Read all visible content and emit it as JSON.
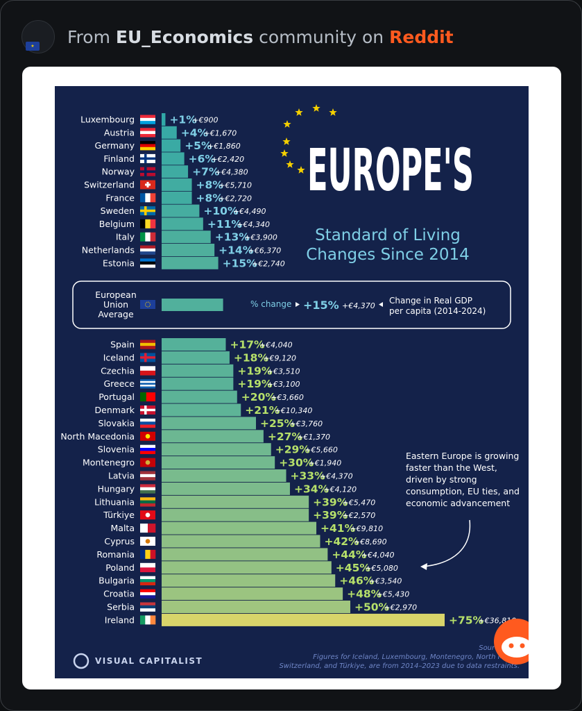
{
  "post": {
    "prefix": "From ",
    "community": "EU_Economics",
    "middle": " community on ",
    "platform": "Reddit",
    "avatar_icon": "eu-flag-icon",
    "corner_badge_icon": "reddit-snoo-icon"
  },
  "colors": {
    "background": "#14224a",
    "bar_start": "#2fa7a8",
    "bar_end": "#d8d46a",
    "label_blue": "#7fcfe6",
    "label_green": "#b6e06a",
    "stars": "#f5d000",
    "reddit": "#ff5a1f"
  },
  "chart_data": {
    "type": "bar",
    "orientation": "horizontal",
    "title": "EUROPE'S",
    "subtitle_line1": "Standard of Living",
    "subtitle_line2": "Changes Since 2014",
    "xlim": [
      0,
      75
    ],
    "grid": false,
    "groups": [
      {
        "name": "top",
        "items": [
          {
            "country": "Luxembourg",
            "pct": 1,
            "pct_label": "+1%",
            "abs_label": "+€900"
          },
          {
            "country": "Austria",
            "pct": 4,
            "pct_label": "+4%",
            "abs_label": "+€1,670"
          },
          {
            "country": "Germany",
            "pct": 5,
            "pct_label": "+5%",
            "abs_label": "+€1,860"
          },
          {
            "country": "Finland",
            "pct": 6,
            "pct_label": "+6%",
            "abs_label": "+€2,420"
          },
          {
            "country": "Norway",
            "pct": 7,
            "pct_label": "+7%",
            "abs_label": "+€4,380"
          },
          {
            "country": "Switzerland",
            "pct": 8,
            "pct_label": "+8%",
            "abs_label": "+€5,710"
          },
          {
            "country": "France",
            "pct": 8,
            "pct_label": "+8%",
            "abs_label": "+€2,720"
          },
          {
            "country": "Sweden",
            "pct": 10,
            "pct_label": "+10%",
            "abs_label": "+€4,490"
          },
          {
            "country": "Belgium",
            "pct": 11,
            "pct_label": "+11%",
            "abs_label": "+€4,340"
          },
          {
            "country": "Italy",
            "pct": 13,
            "pct_label": "+13%",
            "abs_label": "+€3,900"
          },
          {
            "country": "Netherlands",
            "pct": 14,
            "pct_label": "+14%",
            "abs_label": "+€6,370"
          },
          {
            "country": "Estonia",
            "pct": 15,
            "pct_label": "+15%",
            "abs_label": "+€2,740"
          }
        ]
      },
      {
        "name": "bottom",
        "items": [
          {
            "country": "Spain",
            "pct": 17,
            "pct_label": "+17%",
            "abs_label": "+€4,040"
          },
          {
            "country": "Iceland",
            "pct": 18,
            "pct_label": "+18%",
            "abs_label": "+€9,120"
          },
          {
            "country": "Czechia",
            "pct": 19,
            "pct_label": "+19%",
            "abs_label": "+€3,510"
          },
          {
            "country": "Greece",
            "pct": 19,
            "pct_label": "+19%",
            "abs_label": "+€3,100"
          },
          {
            "country": "Portugal",
            "pct": 20,
            "pct_label": "+20%",
            "abs_label": "+€3,660"
          },
          {
            "country": "Denmark",
            "pct": 21,
            "pct_label": "+21%",
            "abs_label": "+€10,340"
          },
          {
            "country": "Slovakia",
            "pct": 25,
            "pct_label": "+25%",
            "abs_label": "+€3,760"
          },
          {
            "country": "North Macedonia",
            "pct": 27,
            "pct_label": "+27%",
            "abs_label": "+€1,370"
          },
          {
            "country": "Slovenia",
            "pct": 29,
            "pct_label": "+29%",
            "abs_label": "+€5,660"
          },
          {
            "country": "Montenegro",
            "pct": 30,
            "pct_label": "+30%",
            "abs_label": "+€1,940"
          },
          {
            "country": "Latvia",
            "pct": 33,
            "pct_label": "+33%",
            "abs_label": "+€4,370"
          },
          {
            "country": "Hungary",
            "pct": 34,
            "pct_label": "+34%",
            "abs_label": "+€4,120"
          },
          {
            "country": "Lithuania",
            "pct": 39,
            "pct_label": "+39%",
            "abs_label": "+€5,470"
          },
          {
            "country": "Türkiye",
            "pct": 39,
            "pct_label": "+39%",
            "abs_label": "+€2,570"
          },
          {
            "country": "Malta",
            "pct": 41,
            "pct_label": "+41%",
            "abs_label": "+€9,810"
          },
          {
            "country": "Cyprus",
            "pct": 42,
            "pct_label": "+42%",
            "abs_label": "+€8,690"
          },
          {
            "country": "Romania",
            "pct": 44,
            "pct_label": "+44%",
            "abs_label": "+€4,040"
          },
          {
            "country": "Poland",
            "pct": 45,
            "pct_label": "+45%",
            "abs_label": "+€5,080"
          },
          {
            "country": "Bulgaria",
            "pct": 46,
            "pct_label": "+46%",
            "abs_label": "+€3,540"
          },
          {
            "country": "Croatia",
            "pct": 48,
            "pct_label": "+48%",
            "abs_label": "+€5,430"
          },
          {
            "country": "Serbia",
            "pct": 50,
            "pct_label": "+50%",
            "abs_label": "+€2,970"
          },
          {
            "country": "Ireland",
            "pct": 75,
            "pct_label": "+75%",
            "abs_label": "+€36,810"
          }
        ]
      }
    ],
    "eu_average": {
      "label_lines": [
        "European",
        "Union",
        "Average"
      ],
      "pct": 15,
      "legend_pct_text": "% change",
      "pct_label": "+15%",
      "abs_label": "+€4,370",
      "legend_abs_lines": [
        "Change in Real GDP",
        "per capita (2014-2024)"
      ]
    },
    "annotation_lines": [
      "Eastern Europe is growing",
      "faster than the West,",
      "driven by strong",
      "consumption, EU ties, and",
      "economic advancement"
    ],
    "source_line1": "Source: Eu",
    "source_line2": "Figures for Iceland, Luxembourg, Montenegro, North Mace",
    "source_line3": "Switzerland, and Türkiye, are from 2014–2023 due to data restraints.",
    "publisher": "VISUAL CAPITALIST"
  }
}
